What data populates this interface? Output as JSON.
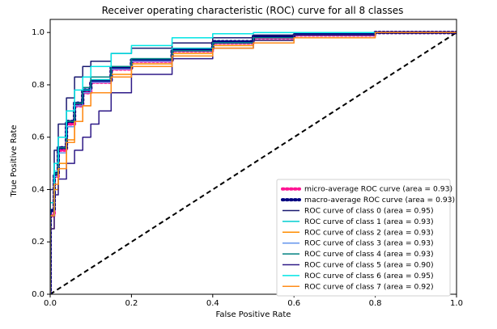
{
  "chart_data": {
    "type": "line",
    "title": "Receiver operating characteristic (ROC) curve for all 8 classes",
    "xlabel": "False Positive Rate",
    "ylabel": "True Positive Rate",
    "xlim": [
      0.0,
      1.0
    ],
    "ylim": [
      0.0,
      1.05
    ],
    "x_ticks": [
      "0.0",
      "0.2",
      "0.4",
      "0.6",
      "0.8",
      "1.0"
    ],
    "y_ticks": [
      "0.0",
      "0.2",
      "0.4",
      "0.6",
      "0.8",
      "1.0"
    ],
    "grid": false,
    "legend_location": "lower-right",
    "diagonal": {
      "style": "dashed",
      "color": "#000000",
      "points": [
        [
          0.0,
          0.0
        ],
        [
          1.0,
          1.0
        ]
      ]
    },
    "series": [
      {
        "name": "micro-average ROC curve (area = 0.93)",
        "color": "#ff1493",
        "style": "dotted",
        "width": 4,
        "points": [
          [
            0.0,
            0.0
          ],
          [
            0.0,
            0.3
          ],
          [
            0.01,
            0.45
          ],
          [
            0.02,
            0.55
          ],
          [
            0.04,
            0.65
          ],
          [
            0.06,
            0.72
          ],
          [
            0.08,
            0.77
          ],
          [
            0.1,
            0.81
          ],
          [
            0.15,
            0.86
          ],
          [
            0.2,
            0.89
          ],
          [
            0.3,
            0.93
          ],
          [
            0.4,
            0.96
          ],
          [
            0.5,
            0.98
          ],
          [
            0.6,
            0.99
          ],
          [
            0.8,
            1.0
          ],
          [
            1.0,
            1.0
          ]
        ]
      },
      {
        "name": "macro-average ROC curve (area = 0.93)",
        "color": "#000080",
        "style": "dotted",
        "width": 4,
        "points": [
          [
            0.0,
            0.0
          ],
          [
            0.0,
            0.32
          ],
          [
            0.01,
            0.46
          ],
          [
            0.02,
            0.56
          ],
          [
            0.04,
            0.66
          ],
          [
            0.06,
            0.73
          ],
          [
            0.08,
            0.78
          ],
          [
            0.1,
            0.815
          ],
          [
            0.15,
            0.865
          ],
          [
            0.2,
            0.895
          ],
          [
            0.3,
            0.935
          ],
          [
            0.4,
            0.965
          ],
          [
            0.5,
            0.985
          ],
          [
            0.6,
            0.995
          ],
          [
            0.8,
            1.0
          ],
          [
            1.0,
            1.0
          ]
        ]
      },
      {
        "name": "ROC curve of class 0 (area = 0.95)",
        "color": "#191970",
        "style": "solid",
        "width": 1.5,
        "points": [
          [
            0.0,
            0.0
          ],
          [
            0.0,
            0.4
          ],
          [
            0.01,
            0.55
          ],
          [
            0.02,
            0.65
          ],
          [
            0.04,
            0.75
          ],
          [
            0.06,
            0.83
          ],
          [
            0.08,
            0.87
          ],
          [
            0.1,
            0.89
          ],
          [
            0.15,
            0.92
          ],
          [
            0.2,
            0.94
          ],
          [
            0.3,
            0.96
          ],
          [
            0.4,
            0.98
          ],
          [
            0.5,
            0.99
          ],
          [
            0.6,
            1.0
          ],
          [
            1.0,
            1.0
          ]
        ]
      },
      {
        "name": "ROC curve of class 1 (area = 0.93)",
        "color": "#00ced1",
        "style": "solid",
        "width": 1.5,
        "points": [
          [
            0.0,
            0.0
          ],
          [
            0.0,
            0.35
          ],
          [
            0.01,
            0.47
          ],
          [
            0.02,
            0.56
          ],
          [
            0.04,
            0.66
          ],
          [
            0.06,
            0.73
          ],
          [
            0.08,
            0.78
          ],
          [
            0.1,
            0.82
          ],
          [
            0.15,
            0.87
          ],
          [
            0.2,
            0.9
          ],
          [
            0.3,
            0.94
          ],
          [
            0.4,
            0.96
          ],
          [
            0.5,
            0.98
          ],
          [
            0.6,
            0.99
          ],
          [
            0.8,
            1.0
          ],
          [
            1.0,
            1.0
          ]
        ]
      },
      {
        "name": "ROC curve of class 2 (area = 0.93)",
        "color": "#ff8c00",
        "style": "solid",
        "width": 1.5,
        "points": [
          [
            0.0,
            0.0
          ],
          [
            0.0,
            0.25
          ],
          [
            0.01,
            0.4
          ],
          [
            0.02,
            0.5
          ],
          [
            0.04,
            0.59
          ],
          [
            0.06,
            0.66
          ],
          [
            0.08,
            0.72
          ],
          [
            0.1,
            0.77
          ],
          [
            0.15,
            0.84
          ],
          [
            0.2,
            0.88
          ],
          [
            0.3,
            0.92
          ],
          [
            0.4,
            0.95
          ],
          [
            0.5,
            0.97
          ],
          [
            0.6,
            0.99
          ],
          [
            0.8,
            1.0
          ],
          [
            1.0,
            1.0
          ]
        ]
      },
      {
        "name": "ROC curve of class 3 (area = 0.93)",
        "color": "#6495ed",
        "style": "solid",
        "width": 1.5,
        "points": [
          [
            0.0,
            0.0
          ],
          [
            0.0,
            0.3
          ],
          [
            0.01,
            0.45
          ],
          [
            0.02,
            0.54
          ],
          [
            0.04,
            0.64
          ],
          [
            0.06,
            0.72
          ],
          [
            0.08,
            0.77
          ],
          [
            0.1,
            0.81
          ],
          [
            0.15,
            0.86
          ],
          [
            0.2,
            0.89
          ],
          [
            0.3,
            0.93
          ],
          [
            0.4,
            0.96
          ],
          [
            0.5,
            0.98
          ],
          [
            0.6,
            0.99
          ],
          [
            0.8,
            1.0
          ],
          [
            1.0,
            1.0
          ]
        ]
      },
      {
        "name": "ROC curve of class 4 (area = 0.93)",
        "color": "#008080",
        "style": "solid",
        "width": 1.5,
        "points": [
          [
            0.0,
            0.0
          ],
          [
            0.0,
            0.3
          ],
          [
            0.01,
            0.46
          ],
          [
            0.02,
            0.56
          ],
          [
            0.04,
            0.66
          ],
          [
            0.06,
            0.73
          ],
          [
            0.08,
            0.79
          ],
          [
            0.1,
            0.83
          ],
          [
            0.15,
            0.87
          ],
          [
            0.2,
            0.9
          ],
          [
            0.3,
            0.93
          ],
          [
            0.4,
            0.96
          ],
          [
            0.5,
            0.98
          ],
          [
            0.6,
            0.99
          ],
          [
            0.8,
            1.0
          ],
          [
            1.0,
            1.0
          ]
        ]
      },
      {
        "name": "ROC curve of class 5 (area = 0.90)",
        "color": "#2e1a87",
        "style": "solid",
        "width": 1.5,
        "points": [
          [
            0.0,
            0.0
          ],
          [
            0.0,
            0.25
          ],
          [
            0.01,
            0.38
          ],
          [
            0.02,
            0.44
          ],
          [
            0.04,
            0.5
          ],
          [
            0.06,
            0.55
          ],
          [
            0.08,
            0.6
          ],
          [
            0.1,
            0.65
          ],
          [
            0.12,
            0.7
          ],
          [
            0.15,
            0.77
          ],
          [
            0.2,
            0.84
          ],
          [
            0.3,
            0.9
          ],
          [
            0.4,
            0.94
          ],
          [
            0.5,
            0.97
          ],
          [
            0.6,
            0.99
          ],
          [
            0.8,
            1.0
          ],
          [
            1.0,
            1.0
          ]
        ]
      },
      {
        "name": "ROC curve of class 6 (area = 0.95)",
        "color": "#00e5e5",
        "style": "solid",
        "width": 1.5,
        "points": [
          [
            0.0,
            0.0
          ],
          [
            0.0,
            0.3
          ],
          [
            0.01,
            0.5
          ],
          [
            0.02,
            0.6
          ],
          [
            0.04,
            0.7
          ],
          [
            0.06,
            0.78
          ],
          [
            0.08,
            0.83
          ],
          [
            0.1,
            0.87
          ],
          [
            0.15,
            0.92
          ],
          [
            0.2,
            0.95
          ],
          [
            0.3,
            0.98
          ],
          [
            0.4,
            0.995
          ],
          [
            0.5,
            1.0
          ],
          [
            1.0,
            1.0
          ]
        ]
      },
      {
        "name": "ROC curve of class 7 (area = 0.92)",
        "color": "#ff8c1a",
        "style": "solid",
        "width": 1.5,
        "points": [
          [
            0.0,
            0.0
          ],
          [
            0.0,
            0.3
          ],
          [
            0.01,
            0.42
          ],
          [
            0.02,
            0.48
          ],
          [
            0.04,
            0.58
          ],
          [
            0.06,
            0.66
          ],
          [
            0.08,
            0.72
          ],
          [
            0.1,
            0.77
          ],
          [
            0.15,
            0.83
          ],
          [
            0.2,
            0.87
          ],
          [
            0.3,
            0.91
          ],
          [
            0.4,
            0.94
          ],
          [
            0.5,
            0.96
          ],
          [
            0.6,
            0.98
          ],
          [
            0.8,
            1.0
          ],
          [
            1.0,
            1.0
          ]
        ]
      }
    ]
  }
}
